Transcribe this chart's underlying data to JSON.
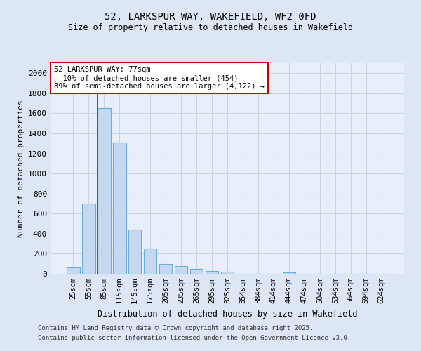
{
  "title1": "52, LARKSPUR WAY, WAKEFIELD, WF2 0FD",
  "title2": "Size of property relative to detached houses in Wakefield",
  "xlabel": "Distribution of detached houses by size in Wakefield",
  "ylabel": "Number of detached properties",
  "categories": [
    "25sqm",
    "55sqm",
    "85sqm",
    "115sqm",
    "145sqm",
    "175sqm",
    "205sqm",
    "235sqm",
    "265sqm",
    "295sqm",
    "325sqm",
    "354sqm",
    "384sqm",
    "414sqm",
    "444sqm",
    "474sqm",
    "504sqm",
    "534sqm",
    "564sqm",
    "594sqm",
    "624sqm"
  ],
  "values": [
    65,
    700,
    1650,
    1310,
    440,
    250,
    95,
    80,
    50,
    30,
    20,
    0,
    0,
    0,
    15,
    0,
    0,
    0,
    0,
    0,
    0
  ],
  "bar_color": "#c5d8f0",
  "bar_edge_color": "#6baed6",
  "red_line_x": 1.575,
  "annotation_title": "52 LARKSPUR WAY: 77sqm",
  "annotation_line1": "← 10% of detached houses are smaller (454)",
  "annotation_line2": "89% of semi-detached houses are larger (4,122) →",
  "annotation_box_color": "#ffffff",
  "annotation_box_edge": "#cc0000",
  "ylim": [
    0,
    2100
  ],
  "yticks": [
    0,
    200,
    400,
    600,
    800,
    1000,
    1200,
    1400,
    1600,
    1800,
    2000
  ],
  "footer1": "Contains HM Land Registry data © Crown copyright and database right 2025.",
  "footer2": "Contains public sector information licensed under the Open Government Licence v3.0.",
  "bg_color": "#dce6f5",
  "plot_bg_color": "#e8eff9",
  "grid_color": "#c8d4e8"
}
